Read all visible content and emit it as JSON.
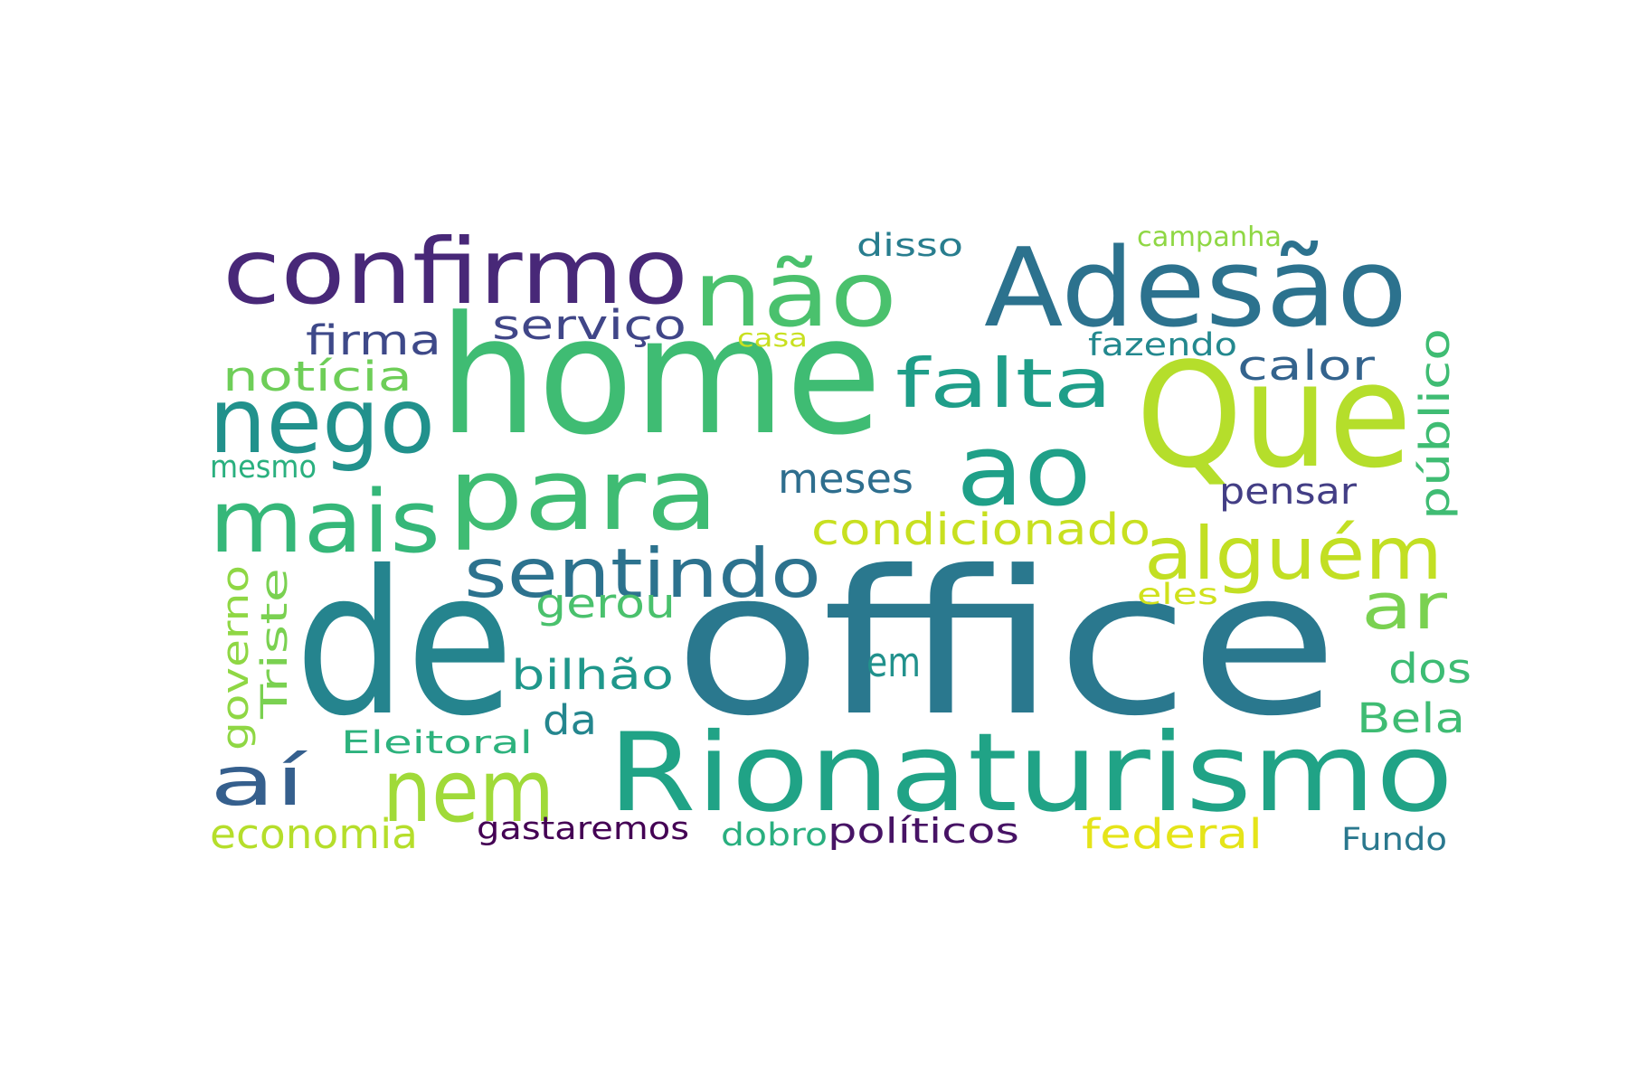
{
  "words": [
    {
      "text": "home",
      "color": "#3fbc73"
    },
    {
      "text": "office",
      "color": "#2a788e"
    },
    {
      "text": "de",
      "color": "#25848e"
    },
    {
      "text": "Que",
      "color": "#b5de2b"
    },
    {
      "text": "Rionaturismo",
      "color": "#20a386"
    },
    {
      "text": "Adesão",
      "color": "#2c728e"
    },
    {
      "text": "confirmo",
      "color": "#482878"
    },
    {
      "text": "não",
      "color": "#4ac16d"
    },
    {
      "text": "ao",
      "color": "#1fa088"
    },
    {
      "text": "para",
      "color": "#3fbc73"
    },
    {
      "text": "nego",
      "color": "#21918c"
    },
    {
      "text": "mais",
      "color": "#35b779"
    },
    {
      "text": "nem",
      "color": "#a0da39"
    },
    {
      "text": "falta",
      "color": "#1f9e89"
    },
    {
      "text": "alguém",
      "color": "#c2df23"
    },
    {
      "text": "sentindo",
      "color": "#2c728e"
    },
    {
      "text": "aí",
      "color": "#355f8d"
    },
    {
      "text": "ar",
      "color": "#7ad151"
    },
    {
      "text": "condicionado",
      "color": "#c8e020"
    },
    {
      "text": "serviço",
      "color": "#404688"
    },
    {
      "text": "firma",
      "color": "#3e4989"
    },
    {
      "text": "notícia",
      "color": "#6ece58"
    },
    {
      "text": "calor",
      "color": "#33638d"
    },
    {
      "text": "público",
      "color": "#3fbc73"
    },
    {
      "text": "meses",
      "color": "#2e6e8e"
    },
    {
      "text": "pensar",
      "color": "#433e85"
    },
    {
      "text": "bilhão",
      "color": "#1f978b"
    },
    {
      "text": "gerou",
      "color": "#4ac16d"
    },
    {
      "text": "em",
      "color": "#21918c"
    },
    {
      "text": "dos",
      "color": "#3dbc74"
    },
    {
      "text": "Bela",
      "color": "#3fbc73"
    },
    {
      "text": "da",
      "color": "#24868e"
    },
    {
      "text": "economia",
      "color": "#b5de2b"
    },
    {
      "text": "gastaremos",
      "color": "#440154"
    },
    {
      "text": "políticos",
      "color": "#471365"
    },
    {
      "text": "federal",
      "color": "#e5e419"
    },
    {
      "text": "dobro",
      "color": "#29af7f"
    },
    {
      "text": "Eleitoral",
      "color": "#2db27d"
    },
    {
      "text": "Fundo",
      "color": "#2a788e"
    },
    {
      "text": "governo",
      "color": "#8fd744"
    },
    {
      "text": "Triste",
      "color": "#7ad151"
    },
    {
      "text": "mesmo",
      "color": "#2ab07f"
    },
    {
      "text": "disso",
      "color": "#287d8e"
    },
    {
      "text": "campanha",
      "color": "#8fd744"
    },
    {
      "text": "casa",
      "color": "#c8e020"
    },
    {
      "text": "fazendo",
      "color": "#23888e"
    },
    {
      "text": "eles",
      "color": "#d0e11c"
    }
  ]
}
